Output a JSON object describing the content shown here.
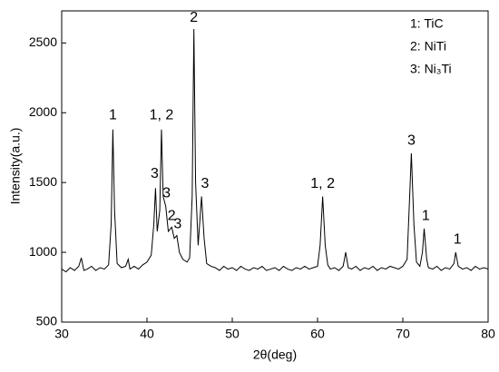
{
  "chart_data": {
    "type": "line",
    "xlabel": "2θ(deg)",
    "ylabel": "Intensity(a.u.)",
    "xlim": [
      30,
      80
    ],
    "xticks": [
      30,
      40,
      50,
      60,
      70,
      80
    ],
    "ylim": [
      500,
      2730
    ],
    "yticks": [
      500,
      1000,
      1500,
      2000,
      2500
    ],
    "color": "#000000",
    "legend_entries": [
      "1: TiC",
      "2: NiTi",
      "3: Ni₃Ti"
    ],
    "x": [
      30,
      30.5,
      31,
      31.5,
      32,
      32.3,
      32.6,
      33,
      33.5,
      34,
      34.5,
      35,
      35.5,
      35.8,
      36,
      36.2,
      36.5,
      37,
      37.5,
      37.8,
      38,
      38.5,
      39,
      39.5,
      40,
      40.5,
      40.8,
      41,
      41.2,
      41.5,
      41.7,
      41.9,
      42.2,
      42.5,
      42.9,
      43.2,
      43.5,
      43.8,
      44.2,
      44.7,
      45,
      45.3,
      45.5,
      45.7,
      46,
      46.4,
      46.7,
      47,
      47.5,
      48,
      48.5,
      49,
      49.5,
      50,
      50.5,
      51,
      51.5,
      52,
      52.5,
      53,
      53.5,
      54,
      54.5,
      55,
      55.5,
      56,
      56.5,
      57,
      57.5,
      58,
      58.5,
      59,
      59.5,
      60,
      60.3,
      60.6,
      60.9,
      61.2,
      61.5,
      62,
      62.5,
      63,
      63.3,
      63.6,
      64,
      64.5,
      65,
      65.5,
      66,
      66.5,
      67,
      67.5,
      68,
      68.5,
      69,
      69.5,
      70,
      70.5,
      70.8,
      71,
      71.3,
      71.6,
      72,
      72.3,
      72.5,
      72.8,
      73,
      73.5,
      74,
      74.5,
      75,
      75.5,
      76,
      76.2,
      76.5,
      77,
      77.5,
      78,
      78.5,
      79,
      79.5,
      80
    ],
    "values": [
      880,
      860,
      890,
      870,
      900,
      960,
      870,
      880,
      900,
      870,
      890,
      880,
      910,
      1200,
      1880,
      1300,
      920,
      890,
      900,
      950,
      880,
      900,
      880,
      910,
      930,
      980,
      1200,
      1460,
      1150,
      1300,
      1880,
      1400,
      1330,
      1150,
      1180,
      1100,
      1120,
      1000,
      950,
      930,
      960,
      1400,
      2600,
      1500,
      1050,
      1400,
      1100,
      920,
      900,
      890,
      870,
      900,
      880,
      890,
      870,
      900,
      880,
      870,
      890,
      880,
      900,
      870,
      880,
      890,
      870,
      900,
      880,
      870,
      890,
      880,
      900,
      880,
      890,
      900,
      1050,
      1400,
      1050,
      910,
      880,
      890,
      870,
      900,
      1000,
      890,
      880,
      900,
      870,
      890,
      880,
      900,
      870,
      890,
      880,
      900,
      890,
      880,
      900,
      950,
      1400,
      1710,
      1200,
      930,
      900,
      1000,
      1170,
      950,
      890,
      880,
      900,
      870,
      890,
      880,
      920,
      1000,
      900,
      880,
      890,
      870,
      900,
      880,
      890,
      880
    ],
    "annotations": [
      {
        "text": "1",
        "x": 36,
        "y": 1980
      },
      {
        "text": "1, 2",
        "x": 41.7,
        "y": 1980
      },
      {
        "text": "3",
        "x": 40.9,
        "y": 1560
      },
      {
        "text": "3",
        "x": 42.3,
        "y": 1420
      },
      {
        "text": "2",
        "x": 42.9,
        "y": 1260
      },
      {
        "text": "3",
        "x": 43.6,
        "y": 1200
      },
      {
        "text": "2",
        "x": 45.5,
        "y": 2680
      },
      {
        "text": "3",
        "x": 46.8,
        "y": 1490
      },
      {
        "text": "1, 2",
        "x": 60.6,
        "y": 1490
      },
      {
        "text": "3",
        "x": 71,
        "y": 1800
      },
      {
        "text": "1",
        "x": 72.7,
        "y": 1260
      },
      {
        "text": "1",
        "x": 76.4,
        "y": 1090
      }
    ]
  }
}
